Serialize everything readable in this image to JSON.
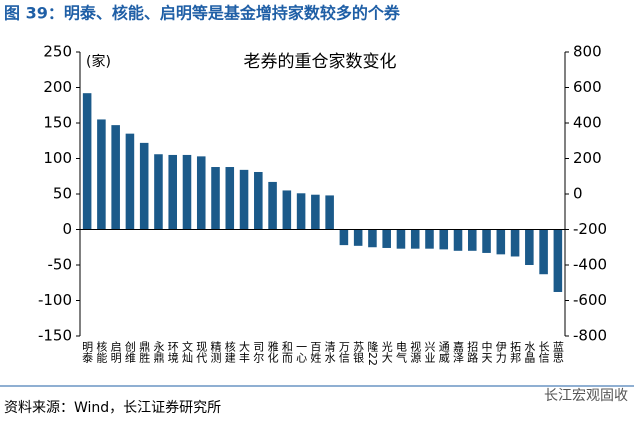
{
  "header": {
    "title": "图 39：明泰、核能、启明等是基金增持家数较多的个券"
  },
  "chart_data": {
    "type": "bar",
    "title": "老券的重仓家数变化",
    "y_label": "(家)",
    "categories": [
      "明泰",
      "核能",
      "启明",
      "创维",
      "鼎胜",
      "永鼎",
      "环境",
      "文灿",
      "现代",
      "精测",
      "核建",
      "大丰",
      "司尔",
      "雅化",
      "和而",
      "一心",
      "百姓",
      "清水",
      "万信",
      "苏银",
      "隆22",
      "光大",
      "电气",
      "视源",
      "兴业",
      "通威",
      "嘉泽",
      "招路",
      "中天",
      "伊力",
      "拓邦",
      "水晶",
      "长信",
      "蓝思"
    ],
    "values": [
      192,
      155,
      147,
      135,
      122,
      106,
      105,
      105,
      103,
      88,
      88,
      84,
      81,
      67,
      55,
      51,
      49,
      48,
      -22,
      -23,
      -25,
      -26,
      -27,
      -27,
      -27,
      -28,
      -30,
      -30,
      -33,
      -35,
      -38,
      -50,
      -63,
      -88
    ],
    "color": "#1b5a8a",
    "ylim": [
      -150,
      250
    ],
    "yticks": [
      -150,
      -100,
      -50,
      0,
      50,
      100,
      150,
      200,
      250
    ],
    "y2lim": [
      -800,
      800
    ],
    "y2ticks": [
      -800,
      -600,
      -400,
      -200,
      0,
      200,
      400,
      600,
      800
    ]
  },
  "footer": {
    "source": "资料来源：Wind，长江证券研究所",
    "watermark": "长江宏观固收"
  }
}
